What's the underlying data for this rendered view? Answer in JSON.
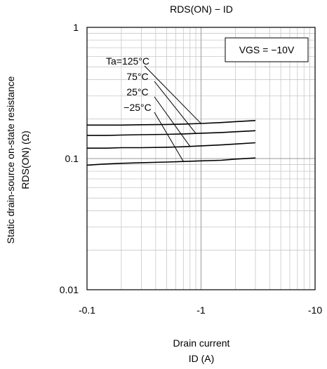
{
  "chart_data": {
    "type": "line",
    "title": "RDS(ON) − ID",
    "xlabel_line1": "Drain current",
    "xlabel_line2": "ID (A)",
    "ylabel_line1": "Static drain-source on-state resistance",
    "ylabel_line2": "RDS(ON) (Ω)",
    "x_scale": "log",
    "y_scale": "log",
    "x_magnitude_range": [
      0.1,
      10
    ],
    "y_range": [
      0.01,
      1
    ],
    "xticks": [
      {
        "value": 0.1,
        "label": "-0.1"
      },
      {
        "value": 1,
        "label": "-1"
      },
      {
        "value": 10,
        "label": "-10"
      }
    ],
    "yticks": [
      {
        "value": 1,
        "label": "1"
      },
      {
        "value": 0.1,
        "label": "0.1"
      },
      {
        "value": 0.01,
        "label": "0.01"
      }
    ],
    "grid": true,
    "condition_box": "VGS = −10V",
    "series": [
      {
        "name": "Ta=125°C",
        "color": "#000000",
        "x": [
          0.1,
          0.15,
          0.2,
          0.3,
          0.5,
          0.7,
          1.0,
          1.5,
          2.0,
          3.0
        ],
        "y": [
          0.18,
          0.18,
          0.18,
          0.181,
          0.182,
          0.183,
          0.185,
          0.188,
          0.191,
          0.195
        ]
      },
      {
        "name": "75°C",
        "color": "#000000",
        "x": [
          0.1,
          0.15,
          0.2,
          0.3,
          0.5,
          0.7,
          1.0,
          1.5,
          2.0,
          3.0
        ],
        "y": [
          0.15,
          0.15,
          0.151,
          0.152,
          0.153,
          0.154,
          0.156,
          0.158,
          0.16,
          0.163
        ]
      },
      {
        "name": "25°C",
        "color": "#000000",
        "x": [
          0.1,
          0.15,
          0.2,
          0.3,
          0.5,
          0.7,
          1.0,
          1.5,
          2.0,
          3.0
        ],
        "y": [
          0.12,
          0.12,
          0.121,
          0.121,
          0.122,
          0.123,
          0.125,
          0.127,
          0.129,
          0.132
        ]
      },
      {
        "name": "−25°C",
        "color": "#000000",
        "x": [
          0.1,
          0.12,
          0.15,
          0.2,
          0.3,
          0.5,
          0.7,
          1.0,
          1.5,
          2.0,
          3.0
        ],
        "y": [
          0.089,
          0.09,
          0.091,
          0.092,
          0.093,
          0.094,
          0.095,
          0.096,
          0.097,
          0.099,
          0.101
        ]
      }
    ],
    "annotations": [
      {
        "text": "Ta=125°C",
        "target_series": 0,
        "target_x": 1.0
      },
      {
        "text": "75°C",
        "target_series": 1,
        "target_x": 0.9
      },
      {
        "text": "25°C",
        "target_series": 2,
        "target_x": 0.8
      },
      {
        "text": "−25°C",
        "target_series": 3,
        "target_x": 0.7
      }
    ]
  }
}
